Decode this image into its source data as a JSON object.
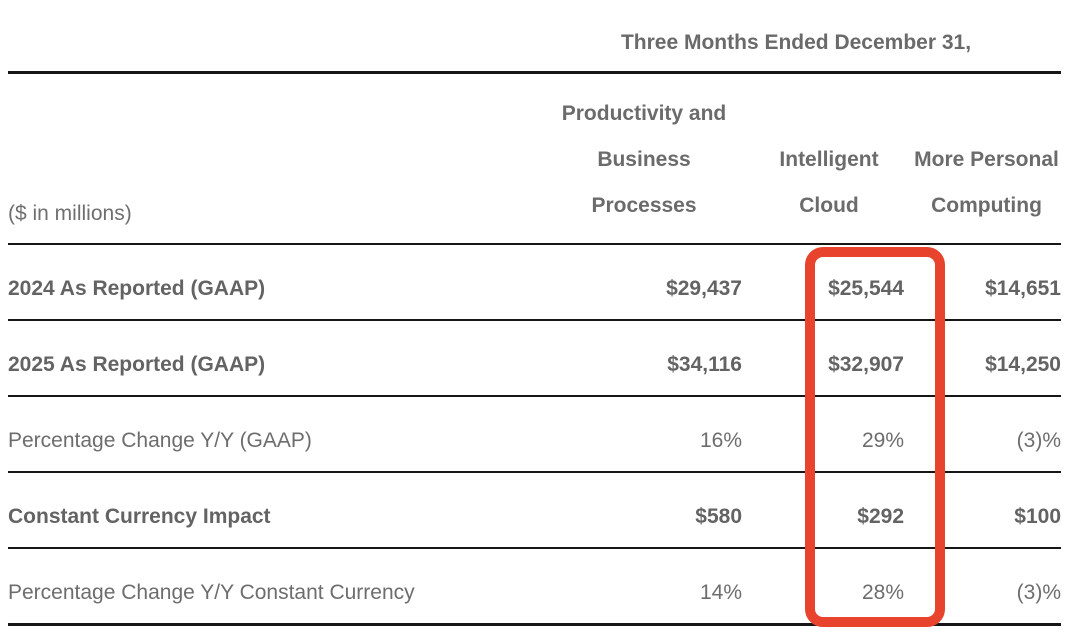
{
  "title_row": {
    "text": "Three Months Ended December 31,"
  },
  "table": {
    "unit_label": "($ in millions)",
    "columns": [
      {
        "name": "Productivity and Business Processes",
        "lines": [
          "Productivity and",
          "Business",
          "Processes"
        ]
      },
      {
        "name": "Intelligent Cloud",
        "lines": [
          "Intelligent Cloud"
        ]
      },
      {
        "name": "More Personal Computing",
        "lines": [
          "More Personal",
          "Computing"
        ]
      }
    ],
    "rows": [
      {
        "label": "2024 As Reported (GAAP)",
        "values": [
          "$29,437",
          "$25,544",
          "$14,651"
        ]
      },
      {
        "label": "2025 As Reported (GAAP)",
        "values": [
          "$34,116",
          "$32,907",
          "$14,250"
        ]
      },
      {
        "label": "Percentage Change Y/Y (GAAP)",
        "values": [
          "16%",
          "29%",
          "(3)%"
        ]
      },
      {
        "label": "Constant Currency Impact",
        "values": [
          "$580",
          "$292",
          "$100"
        ]
      },
      {
        "label": "Percentage Change Y/Y Constant Currency",
        "values": [
          "14%",
          "28%",
          "(3)%"
        ]
      }
    ]
  },
  "annotation": {
    "highlighted_column": "Intelligent Cloud",
    "highlight_color": "#e8432c"
  },
  "colors": {
    "text_gray": "#6d6d6d",
    "rule_black": "#161616"
  }
}
